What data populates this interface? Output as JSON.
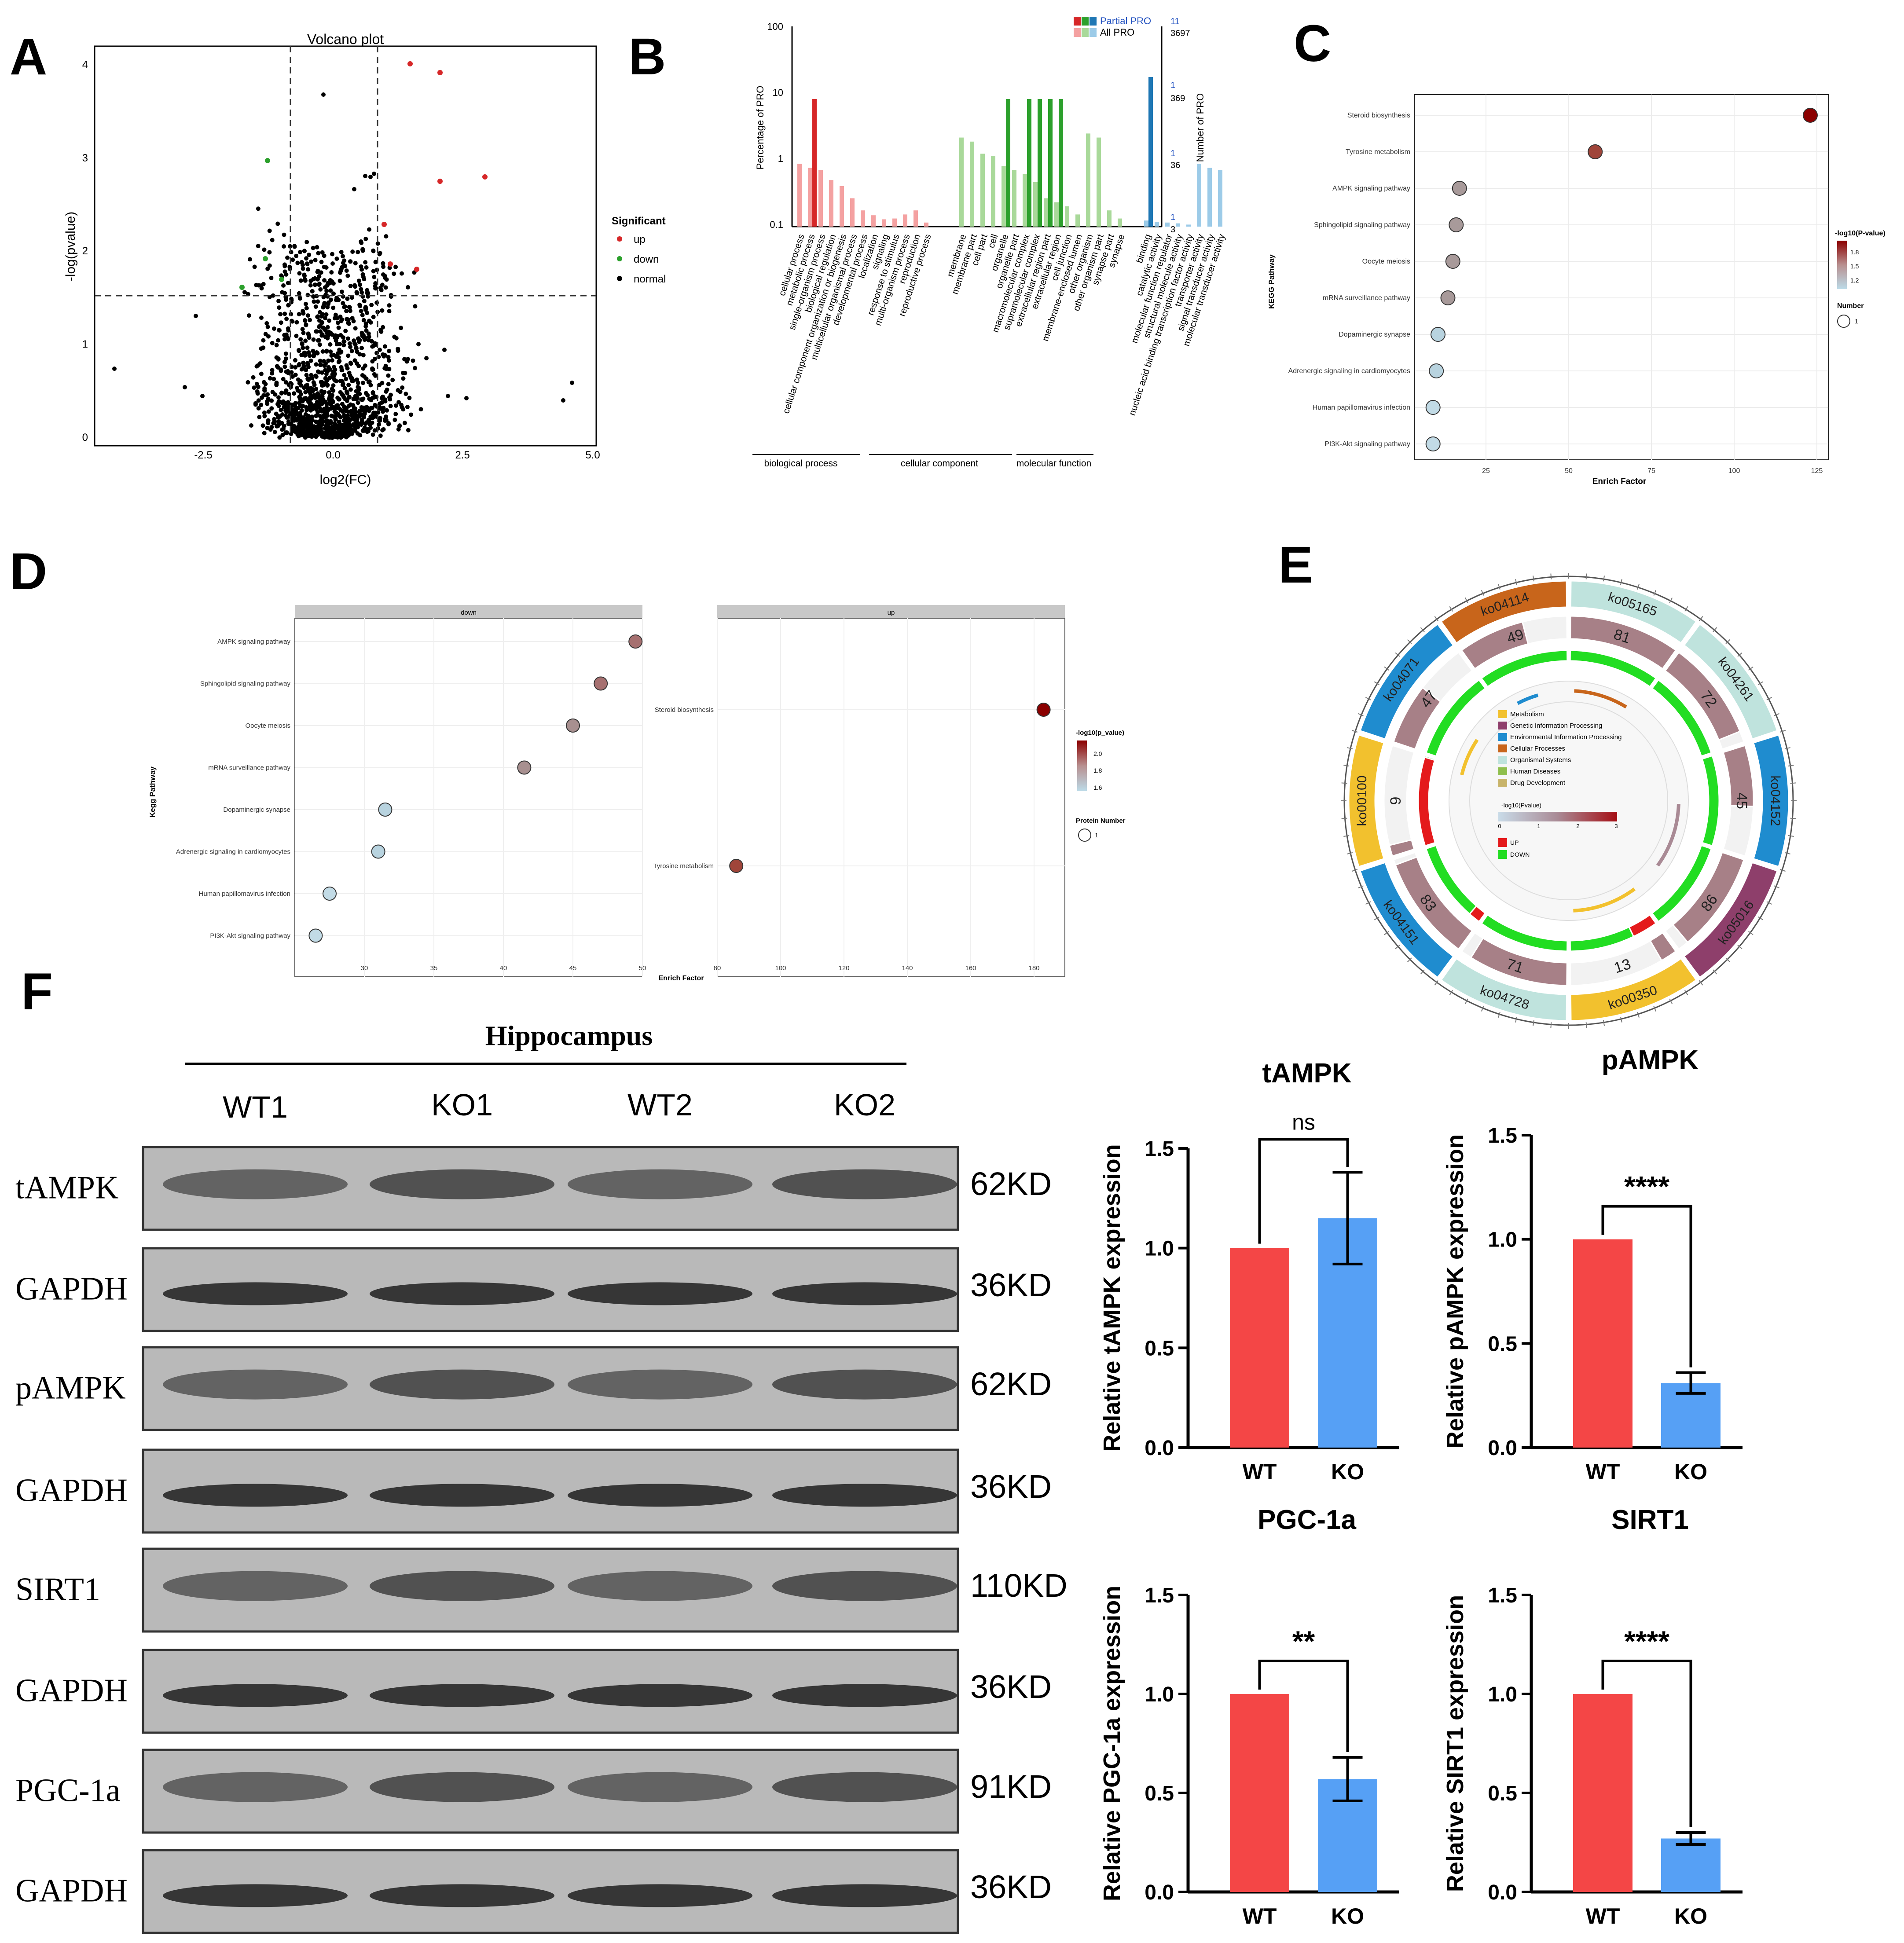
{
  "panels": {
    "A": {
      "letter": "A",
      "title": "Volcano plot",
      "xlabel": "log2(FC)",
      "ylabel": "-log(pvalue)",
      "legend_title": "Significant",
      "legend_items": [
        "up",
        "down",
        "normal"
      ],
      "colors": {
        "up": "#d62728",
        "down": "#2ca02c",
        "normal": "#000000"
      }
    },
    "B": {
      "letter": "B",
      "ylabel_left": "Percentage of PRO",
      "ylabel_right": "Number of PRO",
      "legend": [
        "Partial PRO",
        "All PRO"
      ],
      "left_ticks": [
        "100",
        "10",
        "1",
        "0.1"
      ],
      "right_ticks_top": [
        "11",
        "3697"
      ],
      "right_ticks_mid": [
        "1",
        "369"
      ],
      "right_ticks_low": [
        "1",
        "36"
      ],
      "right_ticks_bottom": [
        "1",
        "3"
      ],
      "groups": [
        "biological process",
        "cellular component",
        "molecular function"
      ],
      "terms_bp": [
        "cellular process",
        "metabolic process",
        "single-organism process",
        "biological regulation",
        "cellular component organization or biogenesis",
        "multicellular organismal process",
        "developmental process",
        "localization",
        "signaling",
        "response to stimulus",
        "multi-organism process",
        "reproduction",
        "reproductive process"
      ],
      "terms_cc": [
        "membrane",
        "membrane part",
        "cell part",
        "cell",
        "organelle",
        "organelle part",
        "macromolecular complex",
        "supramolecular complex",
        "extracellular region part",
        "extracellular region",
        "cell junction",
        "membrane-enclosed lumen",
        "other organism",
        "other organism part",
        "synapse part",
        "synapse"
      ],
      "terms_mf": [
        "binding",
        "catalytic activity",
        "molecular function regulator",
        "structural molecule activity",
        "nucleic acid binding transcription factor activity",
        "transporter activity",
        "signal transducer activity",
        "molecular transducer activity"
      ]
    },
    "C": {
      "letter": "C",
      "ylabel": "KEGG Pathway",
      "xlabel": "Enrich Factor",
      "pathways": [
        "Steroid biosynthesis",
        "Tyrosine metabolism",
        "AMPK signaling pathway",
        "Sphingolipid signaling pathway",
        "Oocyte meiosis",
        "mRNA surveillance pathway",
        "Dopaminergic synapse",
        "Adrenergic signaling in cardiomyocytes",
        "Human papillomavirus infection",
        "PI3K-Akt signaling pathway"
      ],
      "xticks": [
        "25",
        "50",
        "75",
        "100",
        "125"
      ],
      "legend_title": "-log10(P-value)",
      "legend_ticks": [
        "1.8",
        "1.5",
        "1.2"
      ],
      "size_title": "Number",
      "size_value": "1"
    },
    "D": {
      "letter": "D",
      "ylabel": "Kegg Pathway",
      "xlabel": "Enrich Factor",
      "facet_left": "down",
      "facet_right": "up",
      "pathways_left": [
        "AMPK signaling pathway",
        "Sphingolipid signaling pathway",
        "Oocyte meiosis",
        "mRNA surveillance pathway",
        "Dopaminergic synapse",
        "Adrenergic signaling in cardiomyocytes",
        "Human papillomavirus infection",
        "PI3K-Akt signaling pathway"
      ],
      "pathways_right": [
        "Steroid biosynthesis",
        "Tyrosine metabolism"
      ],
      "xticks_left": [
        "30",
        "35",
        "40",
        "45",
        "50"
      ],
      "xticks_right": [
        "80",
        "100",
        "120",
        "140",
        "160",
        "180"
      ],
      "legend_title": "-log10(p_value)",
      "legend_ticks": [
        "2.0",
        "1.8",
        "1.6"
      ],
      "size_title": "Protein Number",
      "size_value": "1"
    },
    "E": {
      "letter": "E",
      "segments": [
        "ko05165",
        "ko04261",
        "ko04152",
        "ko05016",
        "ko00350",
        "ko04728",
        "ko04151",
        "ko00100",
        "ko04071",
        "ko04114"
      ],
      "counts": [
        "81",
        "72",
        "45",
        "86",
        "13",
        "71",
        "83",
        "9",
        "47",
        "49"
      ],
      "legend": [
        "Metabolism",
        "Genetic Information Processing",
        "Environmental Information Processing",
        "Cellular Processes",
        "Organismal Systems",
        "Human Diseases",
        "Drug Development"
      ],
      "legend_colors": [
        "#f2c12e",
        "#8e3f6b",
        "#1f8ccf",
        "#c8651b",
        "#bfe3dd",
        "#8fbf4d",
        "#c8b46a"
      ],
      "pvalue_title": "-log10(Pvalue)",
      "pvalue_ticks": [
        "0",
        "1",
        "2",
        "3"
      ],
      "updown": [
        "UP",
        "DOWN"
      ]
    },
    "F": {
      "letter": "F",
      "blot_title": "Hippocampus",
      "lanes": [
        "WT1",
        "KO1",
        "WT2",
        "KO2"
      ],
      "rows": [
        {
          "label": "tAMPK",
          "size": "62KD"
        },
        {
          "label": "GAPDH",
          "size": "36KD"
        },
        {
          "label": "pAMPK",
          "size": "62KD"
        },
        {
          "label": "GAPDH",
          "size": "36KD"
        },
        {
          "label": "SIRT1",
          "size": "110KD"
        },
        {
          "label": "GAPDH",
          "size": "36KD"
        },
        {
          "label": "PGC-1a",
          "size": "91KD"
        },
        {
          "label": "GAPDH",
          "size": "36KD"
        }
      ]
    }
  },
  "chart_data": [
    {
      "type": "bar",
      "title": "tAMPK",
      "ylabel": "Relative tAMPK expression",
      "categories": [
        "WT",
        "KO"
      ],
      "values": [
        1.0,
        1.15
      ],
      "errors": [
        0,
        0.23
      ],
      "ylim": [
        0,
        1.5
      ],
      "yticks": [
        "0.0",
        "0.5",
        "1.0",
        "1.5"
      ],
      "significance": "ns",
      "colors": [
        "#f44646",
        "#56a0f5"
      ]
    },
    {
      "type": "bar",
      "title": "pAMPK",
      "ylabel": "Relative pAMPK expression",
      "categories": [
        "WT",
        "KO"
      ],
      "values": [
        1.0,
        0.31
      ],
      "errors": [
        0,
        0.05
      ],
      "ylim": [
        0,
        1.5
      ],
      "yticks": [
        "0.0",
        "0.5",
        "1.0",
        "1.5"
      ],
      "significance": "****",
      "colors": [
        "#f44646",
        "#56a0f5"
      ]
    },
    {
      "type": "bar",
      "title": "PGC-1a",
      "ylabel": "Relative PGC-1a expression",
      "categories": [
        "WT",
        "KO"
      ],
      "values": [
        1.0,
        0.57
      ],
      "errors": [
        0,
        0.11
      ],
      "ylim": [
        0,
        1.5
      ],
      "yticks": [
        "0.0",
        "0.5",
        "1.0",
        "1.5"
      ],
      "significance": "**",
      "colors": [
        "#f44646",
        "#56a0f5"
      ]
    },
    {
      "type": "bar",
      "title": "SIRT1",
      "ylabel": "Relative SIRT1 expression",
      "categories": [
        "WT",
        "KO"
      ],
      "values": [
        1.0,
        0.27
      ],
      "errors": [
        0,
        0.03
      ],
      "ylim": [
        0,
        1.5
      ],
      "yticks": [
        "0.0",
        "0.5",
        "1.0",
        "1.5"
      ],
      "significance": "****",
      "colors": [
        "#f44646",
        "#56a0f5"
      ]
    }
  ]
}
